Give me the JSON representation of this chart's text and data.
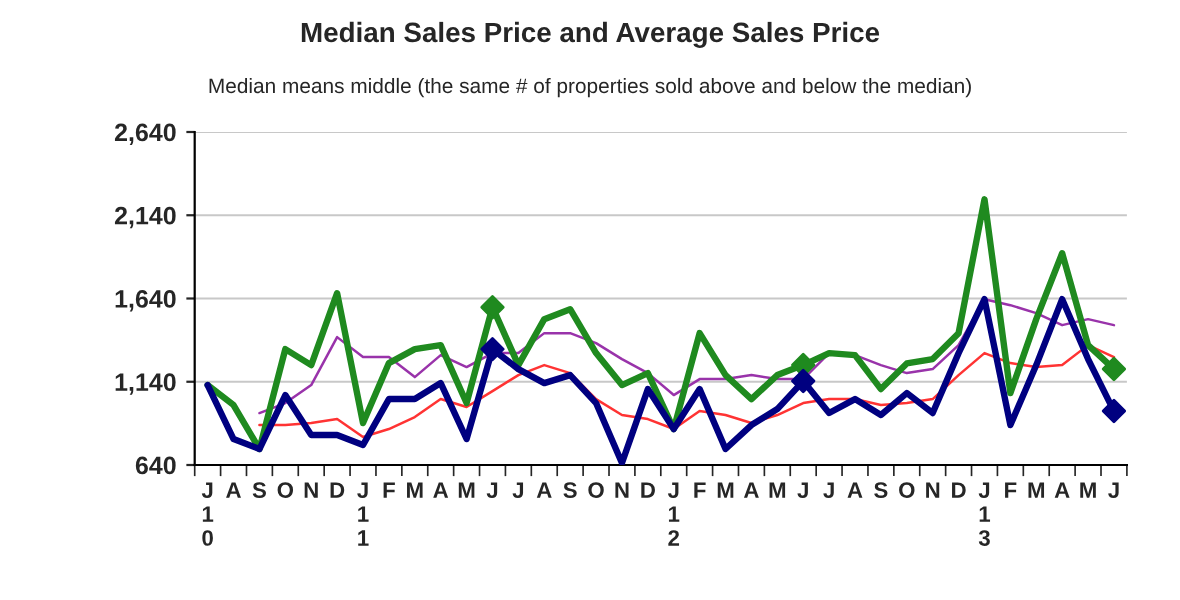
{
  "chart_data": {
    "type": "line",
    "title": "Median Sales Price and Average Sales Price",
    "subtitle": "Median means middle (the same # of properties sold above and below the median)",
    "categories": [
      "J\n1\n0",
      "A",
      "S",
      "O",
      "N",
      "D",
      "J\n1\n1",
      "F",
      "M",
      "A",
      "M",
      "J",
      "J",
      "A",
      "S",
      "O",
      "N",
      "D",
      "J\n1\n2",
      "F",
      "M",
      "A",
      "M",
      "J",
      "J",
      "A",
      "S",
      "O",
      "N",
      "D",
      "J\n1\n3",
      "F",
      "M",
      "A",
      "M",
      "J"
    ],
    "series": [
      {
        "color": "#1f8a1f",
        "values": [
          1120,
          1000,
          736,
          1336,
          1240,
          1672,
          892,
          1252,
          1336,
          1360,
          1012,
          1588,
          1240,
          1516,
          1576,
          1312,
          1120,
          1192,
          856,
          1432,
          1180,
          1036,
          1180,
          1240,
          1312,
          1300,
          1096,
          1250,
          1276,
          1432,
          2236,
          1072,
          1516,
          1912,
          1360,
          1216
        ]
      },
      {
        "color": "#000080",
        "values": [
          1120,
          796,
          736,
          1060,
          820,
          820,
          760,
          1036,
          1036,
          1132,
          796,
          1336,
          1216,
          1132,
          1180,
          1012,
          652,
          1096,
          856,
          1096,
          736,
          880,
          976,
          1144,
          952,
          1036,
          940,
          1072,
          952,
          1312,
          1636,
          880,
          1240,
          1636,
          1276,
          964
        ]
      },
      {
        "color": "#9933aa",
        "values": [
          null,
          null,
          952,
          1012,
          1120,
          1408,
          1288,
          1288,
          1168,
          1300,
          1228,
          1312,
          1312,
          1432,
          1432,
          1372,
          1276,
          1192,
          1060,
          1156,
          1156,
          1180,
          1156,
          1156,
          1312,
          1300,
          1240,
          1192,
          1216,
          1360,
          1636,
          1600,
          1552,
          1480,
          1516,
          1480
        ]
      },
      {
        "color": "#ff3333",
        "values": [
          null,
          null,
          880,
          880,
          892,
          916,
          808,
          856,
          928,
          1036,
          988,
          1084,
          1180,
          1240,
          1192,
          1036,
          940,
          916,
          856,
          964,
          940,
          892,
          940,
          1012,
          1036,
          1036,
          1000,
          1012,
          1036,
          1180,
          1312,
          1252,
          1228,
          1240,
          1360,
          1288
        ]
      },
      {
        "type": "scatter",
        "marker": "diamond",
        "color": "#1f8a1f",
        "values": [
          null,
          null,
          null,
          null,
          null,
          null,
          null,
          null,
          null,
          null,
          null,
          1588,
          null,
          null,
          null,
          null,
          null,
          null,
          null,
          null,
          null,
          null,
          null,
          1240,
          null,
          null,
          null,
          null,
          null,
          null,
          null,
          null,
          null,
          null,
          null,
          1216
        ]
      },
      {
        "type": "scatter",
        "marker": "diamond",
        "color": "#000080",
        "values": [
          null,
          null,
          null,
          null,
          null,
          null,
          null,
          null,
          null,
          null,
          null,
          1336,
          null,
          null,
          null,
          null,
          null,
          null,
          null,
          null,
          null,
          null,
          null,
          1144,
          null,
          null,
          null,
          null,
          null,
          null,
          null,
          null,
          null,
          null,
          null,
          964
        ]
      }
    ],
    "ylim": [
      640,
      2640
    ],
    "yticks": [
      {
        "value": 640,
        "label": "640"
      },
      {
        "value": 1140,
        "label": "1,140"
      },
      {
        "value": 1640,
        "label": "1,640"
      },
      {
        "value": 2140,
        "label": "2,140"
      },
      {
        "value": 2640,
        "label": "2,640"
      }
    ],
    "grid": "y",
    "marker": "none",
    "line_style": "solid",
    "legend": false
  }
}
